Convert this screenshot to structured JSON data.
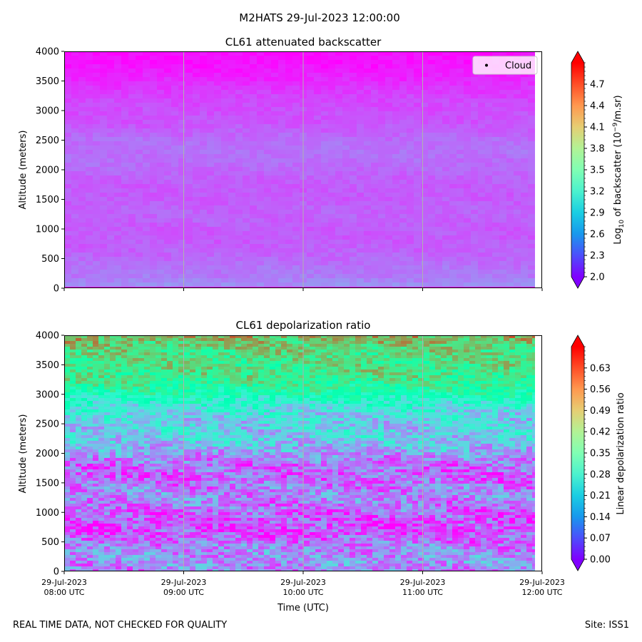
{
  "figure": {
    "suptitle": "M2HATS 29-Jul-2023 12:00:00",
    "footer_left": "REAL TIME DATA, NOT CHECKED FOR QUALITY",
    "footer_right": "Site: ISS1",
    "xlabel": "Time (UTC)"
  },
  "chart_data": [
    {
      "type": "heatmap",
      "title": "CL61 attenuated backscatter",
      "ylabel": "Altitude (meters)",
      "ylim": [
        0,
        4000
      ],
      "yticks": [
        0,
        500,
        1000,
        1500,
        2000,
        2500,
        3000,
        3500,
        4000
      ],
      "xticks": [],
      "vertical_gridlines": true,
      "colormap": "rainbow",
      "colorbar": {
        "label_pre": "Log",
        "label_sub": "10",
        "label_mid": " of backscatter (10",
        "label_sup": "−9",
        "label_post": "/m.sr)",
        "range": [
          2.0,
          5.0
        ],
        "ticks": [
          "2.0",
          "2.3",
          "2.6",
          "2.9",
          "3.2",
          "3.5",
          "3.8",
          "4.1",
          "4.4",
          "4.7"
        ],
        "extend": "both"
      },
      "legend": {
        "entries": [
          "Cloud"
        ],
        "placement": "top-right"
      },
      "profile_vs_altitude": [
        {
          "altitude": 0,
          "value": 2.6
        },
        {
          "altitude": 200,
          "value": 2.45
        },
        {
          "altitude": 500,
          "value": 2.4
        },
        {
          "altitude": 1000,
          "value": 2.35
        },
        {
          "altitude": 1500,
          "value": 2.35
        },
        {
          "altitude": 2000,
          "value": 2.4
        },
        {
          "altitude": 2500,
          "value": 2.42
        },
        {
          "altitude": 3000,
          "value": 2.3
        },
        {
          "altitude": 3500,
          "value": 2.15
        },
        {
          "altitude": 4000,
          "value": 2.05
        }
      ]
    },
    {
      "type": "heatmap",
      "title": "CL61 depolarization ratio",
      "ylabel": "Altitude (meters)",
      "ylim": [
        0,
        4000
      ],
      "yticks": [
        0,
        500,
        1000,
        1500,
        2000,
        2500,
        3000,
        3500,
        4000
      ],
      "xticks": [
        "29-Jul-2023\n08:00 UTC",
        "29-Jul-2023\n09:00 UTC",
        "29-Jul-2023\n10:00 UTC",
        "29-Jul-2023\n11:00 UTC",
        "29-Jul-2023\n12:00 UTC"
      ],
      "vertical_gridlines": true,
      "colormap": "rainbow",
      "colorbar": {
        "label": "Linear depolarization ratio",
        "range": [
          0.0,
          0.7
        ],
        "ticks": [
          "0.00",
          "0.07",
          "0.14",
          "0.21",
          "0.28",
          "0.35",
          "0.42",
          "0.49",
          "0.56",
          "0.63"
        ],
        "extend": "both"
      },
      "profile_vs_altitude": [
        {
          "altitude": 0,
          "value": 0.12
        },
        {
          "altitude": 500,
          "value": 0.1
        },
        {
          "altitude": 1000,
          "value": 0.09
        },
        {
          "altitude": 1500,
          "value": 0.1
        },
        {
          "altitude": 2000,
          "value": 0.15
        },
        {
          "altitude": 2500,
          "value": 0.2
        },
        {
          "altitude": 3000,
          "value": 0.35
        },
        {
          "altitude": 3500,
          "value": 0.45
        },
        {
          "altitude": 4000,
          "value": 0.55
        }
      ]
    }
  ]
}
